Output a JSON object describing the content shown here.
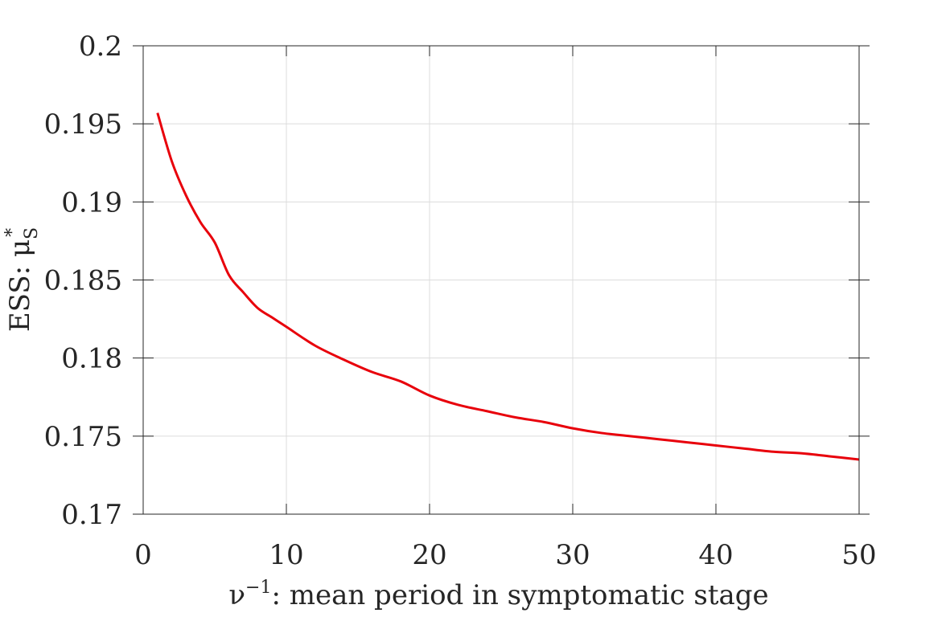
{
  "chart_data": {
    "type": "line",
    "title": "",
    "xlabel_parts": [
      "ν",
      "−1",
      ": mean period in symptomatic stage"
    ],
    "ylabel_parts": [
      "ESS: μ",
      "S",
      "*"
    ],
    "xlim": [
      0,
      50
    ],
    "ylim": [
      0.17,
      0.2
    ],
    "xticks": [
      0,
      10,
      20,
      30,
      40,
      50
    ],
    "yticks": [
      0.17,
      0.175,
      0.18,
      0.185,
      0.19,
      0.195,
      0.2
    ],
    "xtick_labels": [
      "0",
      "10",
      "20",
      "30",
      "40",
      "50"
    ],
    "ytick_labels": [
      "0.17",
      "0.175",
      "0.18",
      "0.185",
      "0.19",
      "0.195",
      "0.2"
    ],
    "grid": true,
    "series": [
      {
        "color": "#e8000b",
        "x": [
          1,
          2,
          3,
          4,
          5,
          6,
          7,
          8,
          9,
          10,
          12,
          14,
          16,
          18,
          20,
          22,
          24,
          26,
          28,
          30,
          32,
          34,
          36,
          38,
          40,
          42,
          44,
          46,
          48,
          50
        ],
        "y": [
          0.1957,
          0.1926,
          0.1904,
          0.1887,
          0.1874,
          0.1853,
          0.1842,
          0.1832,
          0.1826,
          0.182,
          0.1808,
          0.1799,
          0.1791,
          0.1785,
          0.1776,
          0.177,
          0.1766,
          0.1762,
          0.1759,
          0.1755,
          0.1752,
          0.175,
          0.1748,
          0.1746,
          0.1744,
          0.1742,
          0.174,
          0.1739,
          0.1737,
          0.1735
        ]
      }
    ]
  }
}
